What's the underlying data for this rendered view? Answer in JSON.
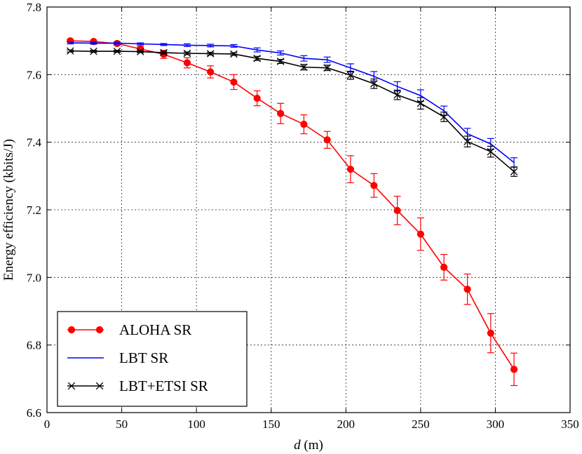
{
  "chart_data": {
    "type": "line",
    "xlabel_var": "d",
    "xlabel_unit": " (m)",
    "ylabel": "Energy efficiency (kbits/J)",
    "xlim": [
      0,
      350
    ],
    "ylim": [
      6.6,
      7.8
    ],
    "xticks": [
      0,
      50,
      100,
      150,
      200,
      250,
      300,
      350
    ],
    "yticks": [
      6.6,
      6.8,
      7.0,
      7.2,
      7.4,
      7.6,
      7.8
    ],
    "xtick_labels": [
      "0",
      "50",
      "100",
      "150",
      "200",
      "250",
      "300",
      "350"
    ],
    "ytick_labels": [
      "6.6",
      "6.8",
      "7.0",
      "7.2",
      "7.4",
      "7.6",
      "7.8"
    ],
    "grid": true,
    "legend_position": "lower-left",
    "x": [
      15.6,
      31.2,
      46.9,
      62.5,
      78.1,
      93.8,
      109.4,
      125.0,
      140.6,
      156.3,
      171.9,
      187.5,
      203.1,
      218.8,
      234.4,
      250.0,
      265.6,
      281.3,
      296.9,
      312.5
    ],
    "series": [
      {
        "name": "ALOHA SR",
        "color": "#ff0000",
        "marker": "circle",
        "values": [
          7.7,
          7.698,
          7.692,
          7.676,
          7.66,
          7.635,
          7.608,
          7.578,
          7.53,
          7.485,
          7.453,
          7.407,
          7.32,
          7.272,
          7.198,
          7.128,
          7.03,
          6.965,
          6.835,
          6.728
        ],
        "errors": [
          0.004,
          0.004,
          0.005,
          0.008,
          0.012,
          0.015,
          0.018,
          0.022,
          0.022,
          0.03,
          0.028,
          0.025,
          0.04,
          0.035,
          0.042,
          0.048,
          0.038,
          0.045,
          0.058,
          0.048
        ]
      },
      {
        "name": "LBT SR",
        "color": "#0000ff",
        "marker": "none",
        "values": [
          7.694,
          7.693,
          7.693,
          7.691,
          7.689,
          7.687,
          7.686,
          7.685,
          7.673,
          7.664,
          7.648,
          7.644,
          7.62,
          7.595,
          7.565,
          7.538,
          7.493,
          7.425,
          7.395,
          7.34
        ],
        "errors": [
          0.003,
          0.003,
          0.003,
          0.003,
          0.003,
          0.004,
          0.004,
          0.004,
          0.006,
          0.006,
          0.008,
          0.008,
          0.012,
          0.014,
          0.014,
          0.017,
          0.014,
          0.016,
          0.016,
          0.014
        ]
      },
      {
        "name": "LBT+ETSI SR",
        "color": "#000000",
        "marker": "x",
        "values": [
          7.67,
          7.669,
          7.669,
          7.668,
          7.665,
          7.663,
          7.662,
          7.661,
          7.648,
          7.639,
          7.622,
          7.62,
          7.598,
          7.573,
          7.54,
          7.515,
          7.475,
          7.402,
          7.372,
          7.313
        ],
        "errors": [
          0.003,
          0.003,
          0.003,
          0.003,
          0.004,
          0.004,
          0.004,
          0.004,
          0.006,
          0.006,
          0.008,
          0.008,
          0.012,
          0.014,
          0.014,
          0.017,
          0.014,
          0.016,
          0.016,
          0.014
        ]
      }
    ]
  }
}
